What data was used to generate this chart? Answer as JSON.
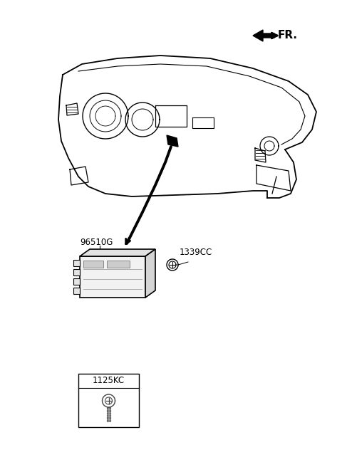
{
  "bg_color": "#ffffff",
  "line_color": "#000000",
  "label_96510G": "96510G",
  "label_1339CC": "1339CC",
  "label_1125KC": "1125KC",
  "label_FR": "FR.",
  "fig_width": 4.8,
  "fig_height": 6.56,
  "dpi": 100
}
